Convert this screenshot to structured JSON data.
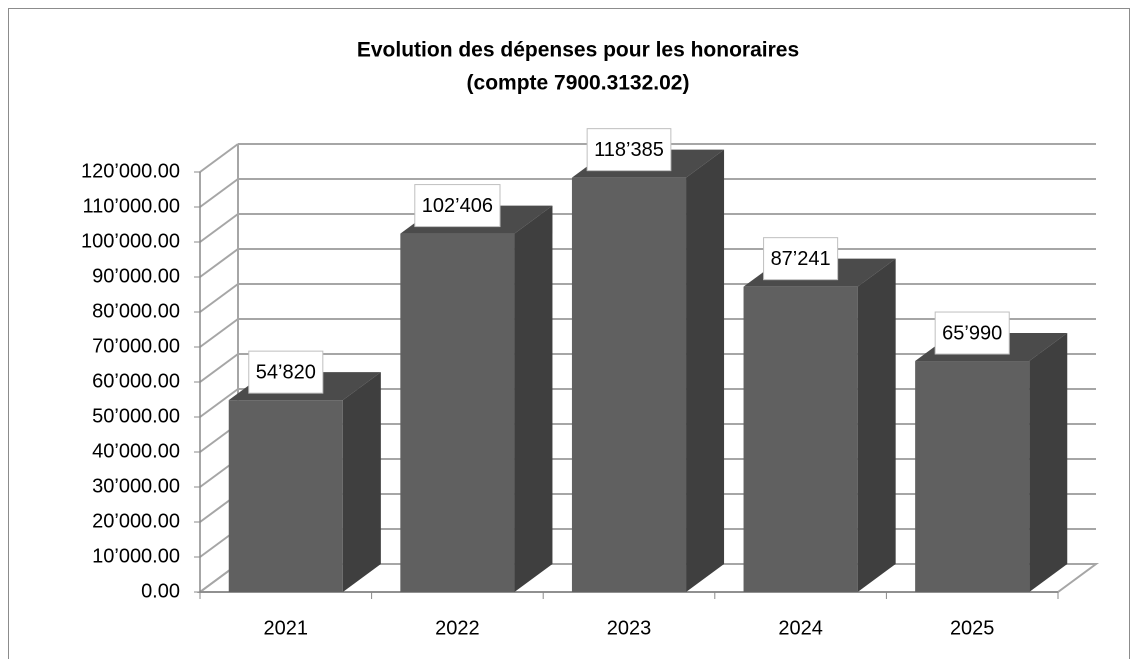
{
  "chart_data": {
    "type": "bar3d",
    "title": "Evolution des dépenses pour les honoraires",
    "subtitle": "(compte 7900.3132.02)",
    "categories": [
      "2021",
      "2022",
      "2023",
      "2024",
      "2025"
    ],
    "values": [
      54820,
      102406,
      118385,
      87241,
      65990
    ],
    "value_labels": [
      "54’820",
      "102’406",
      "118’385",
      "87’241",
      "65’990"
    ],
    "color": "#606060",
    "ylim": [
      0,
      120000
    ],
    "yticks": [
      {
        "value": 0,
        "label": "0.00"
      },
      {
        "value": 10000,
        "label": "10’000.00"
      },
      {
        "value": 20000,
        "label": "20’000.00"
      },
      {
        "value": 30000,
        "label": "30’000.00"
      },
      {
        "value": 40000,
        "label": "40’000.00"
      },
      {
        "value": 50000,
        "label": "50’000.00"
      },
      {
        "value": 60000,
        "label": "60’000.00"
      },
      {
        "value": 70000,
        "label": "70’000.00"
      },
      {
        "value": 80000,
        "label": "80’000.00"
      },
      {
        "value": 90000,
        "label": "90’000.00"
      },
      {
        "value": 100000,
        "label": "100’000.00"
      },
      {
        "value": 110000,
        "label": "110’000.00"
      },
      {
        "value": 120000,
        "label": "120’000.00"
      }
    ],
    "grid": true
  }
}
